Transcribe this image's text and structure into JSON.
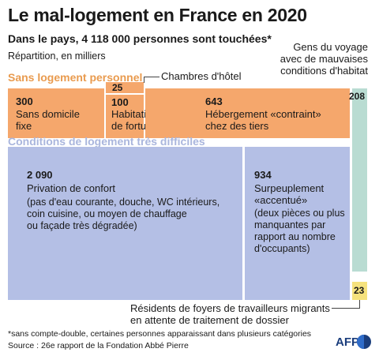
{
  "header": {
    "title": "Le mal-logement en France en 2020",
    "subtitle": "Dans le pays, 4 118 000 personnes sont touchées*",
    "unit_note": "Répartition, en milliers"
  },
  "categories": {
    "no_housing": "Sans logement personnel",
    "difficult": "Conditions de logement très difficiles"
  },
  "cells": {
    "sdf": {
      "value": "300",
      "label_1": "Sans domicile",
      "label_2": "fixe"
    },
    "hotel": {
      "value": "25",
      "callout": "Chambres d'hôtel"
    },
    "fortune": {
      "value": "100",
      "label_1": "Habitations",
      "label_2": "de fortune"
    },
    "contraint": {
      "value": "643",
      "label_1": "Hébergement «contraint»",
      "label_2": "chez des tiers"
    },
    "voyage": {
      "value": "208",
      "callout_1": "Gens du voyage",
      "callout_2": "avec de mauvaises",
      "callout_3": "conditions d'habitat"
    },
    "confort": {
      "value": "2 090",
      "label_1": "Privation de confort",
      "sub_1": "(pas d'eau courante, douche, WC intérieurs,",
      "sub_2": "coin cuisine, ou moyen de chauffage",
      "sub_3": "ou façade très dégradée)"
    },
    "surpeuplement": {
      "value": "934",
      "label_1": "Surpeuplement",
      "label_2": "«accentué»",
      "sub_1": "(deux pièces ou plus",
      "sub_2": "manquantes par",
      "sub_3": "rapport au nombre",
      "sub_4": "d'occupants)"
    },
    "foyers": {
      "value": "23",
      "callout_1": "Résidents de foyers de travailleurs migrants",
      "callout_2": "en attente de traitement de dossier"
    }
  },
  "footer": {
    "footnote": "*sans compte-double, certaines personnes apparaissant dans plusieurs catégories",
    "source": "Source : 26e rapport de la Fondation Abbé Pierre",
    "agency": "AFP"
  },
  "colors": {
    "orange": "#f5a76c",
    "blue": "#b4bfe5",
    "teal": "#b9dcd2",
    "yellow": "#f5e27d",
    "orange_label": "#e99b4f",
    "blue_label": "#aab6dd"
  },
  "chart_data": {
    "type": "treemap",
    "title": "Le mal-logement en France en 2020",
    "subtitle": "Dans le pays, 4 118 000 personnes sont touchées*",
    "unit": "milliers",
    "groups": [
      {
        "name": "Sans logement personnel",
        "items": [
          {
            "label": "Sans domicile fixe",
            "value": 300
          },
          {
            "label": "Chambres d'hôtel",
            "value": 25
          },
          {
            "label": "Habitations de fortune",
            "value": 100
          },
          {
            "label": "Hébergement «contraint» chez des tiers",
            "value": 643
          }
        ]
      },
      {
        "name": "Conditions de logement très difficiles",
        "items": [
          {
            "label": "Privation de confort",
            "value": 2090
          },
          {
            "label": "Surpeuplement «accentué»",
            "value": 934
          }
        ]
      },
      {
        "name": "",
        "items": [
          {
            "label": "Gens du voyage avec de mauvaises conditions d'habitat",
            "value": 208
          },
          {
            "label": "Résidents de foyers de travailleurs migrants en attente de traitement de dossier",
            "value": 23
          }
        ]
      }
    ]
  }
}
